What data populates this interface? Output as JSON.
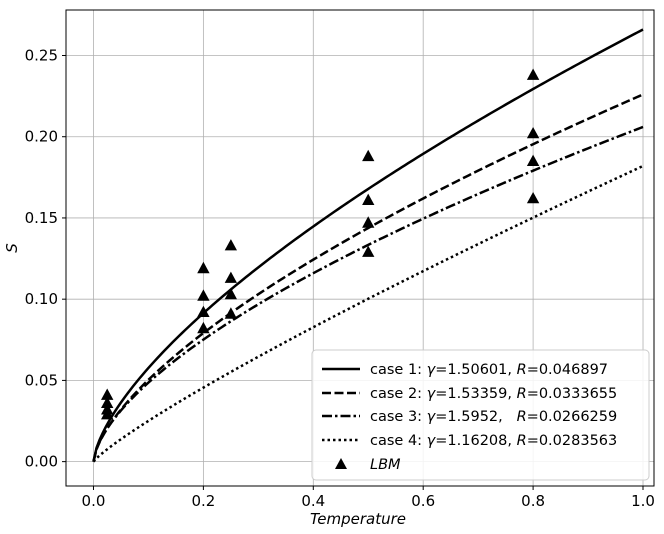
{
  "chart_data": {
    "type": "line",
    "xlabel": "Temperature",
    "ylabel": "S",
    "xlim": [
      -0.05,
      1.02
    ],
    "ylim": [
      -0.015,
      0.278
    ],
    "xticks": [
      0.0,
      0.2,
      0.4,
      0.6,
      0.8,
      1.0
    ],
    "xtick_labels": [
      "0.0",
      "0.2",
      "0.4",
      "0.6",
      "0.8",
      "1.0"
    ],
    "yticks": [
      0.0,
      0.05,
      0.1,
      0.15,
      0.2,
      0.25
    ],
    "ytick_labels": [
      "0.00",
      "0.05",
      "0.10",
      "0.15",
      "0.20",
      "0.25"
    ],
    "grid": true,
    "legend_position": "lower-right",
    "series": [
      {
        "name": "case 1: γ=1.50601, R=0.046897",
        "legend": {
          "prefix": "case 1: ",
          "gamma_symbol": "γ",
          "gamma_value": "=1.50601, ",
          "r_symbol": "R",
          "r_value": "=0.046897"
        },
        "dash": "solid",
        "gamma": 1.50601,
        "R": 0.046897,
        "peak": 0.266
      },
      {
        "name": "case 2: γ=1.53359, R=0.0333655",
        "legend": {
          "prefix": "case 2: ",
          "gamma_symbol": "γ",
          "gamma_value": "=1.53359, ",
          "r_symbol": "R",
          "r_value": "=0.0333655"
        },
        "dash": "dashed",
        "gamma": 1.53359,
        "R": 0.0333655,
        "peak": 0.226
      },
      {
        "name": "case 3: γ=1.5952, R=0.0266259",
        "legend": {
          "prefix": "case 3: ",
          "gamma_symbol": "γ",
          "gamma_value": "=1.5952,   ",
          "r_symbol": "R",
          "r_value": "=0.0266259"
        },
        "dash": "dashdot",
        "gamma": 1.5952,
        "R": 0.0266259,
        "peak": 0.206
      },
      {
        "name": "case 4: γ=1.16208, R=0.0283563",
        "legend": {
          "prefix": "case 4: ",
          "gamma_symbol": "γ",
          "gamma_value": "=1.16208, ",
          "r_symbol": "R",
          "r_value": "=0.0283563"
        },
        "dash": "dotted",
        "gamma": 1.16208,
        "R": 0.0283563,
        "peak": 0.182
      }
    ],
    "lbm": {
      "name": "LBM",
      "points": [
        {
          "x": 0.025,
          "y": 0.041
        },
        {
          "x": 0.2,
          "y": 0.119
        },
        {
          "x": 0.25,
          "y": 0.133
        },
        {
          "x": 0.5,
          "y": 0.188
        },
        {
          "x": 0.8,
          "y": 0.238
        },
        {
          "x": 0.025,
          "y": 0.036
        },
        {
          "x": 0.2,
          "y": 0.102
        },
        {
          "x": 0.25,
          "y": 0.113
        },
        {
          "x": 0.5,
          "y": 0.161
        },
        {
          "x": 0.8,
          "y": 0.202
        },
        {
          "x": 0.025,
          "y": 0.032
        },
        {
          "x": 0.2,
          "y": 0.092
        },
        {
          "x": 0.25,
          "y": 0.103
        },
        {
          "x": 0.5,
          "y": 0.147
        },
        {
          "x": 0.8,
          "y": 0.185
        },
        {
          "x": 0.025,
          "y": 0.029
        },
        {
          "x": 0.2,
          "y": 0.082
        },
        {
          "x": 0.25,
          "y": 0.091
        },
        {
          "x": 0.5,
          "y": 0.129
        },
        {
          "x": 0.8,
          "y": 0.162
        }
      ]
    }
  }
}
